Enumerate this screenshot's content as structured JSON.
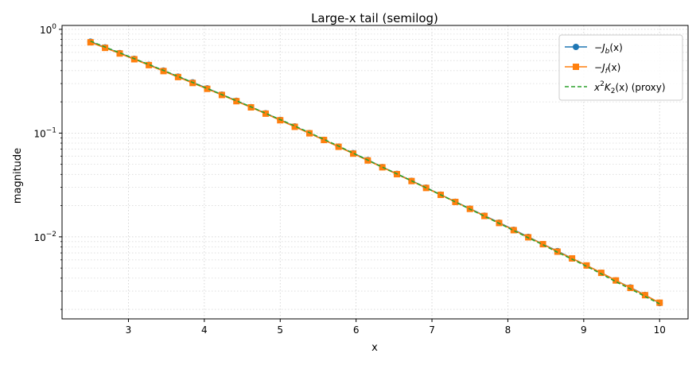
{
  "chart_data": {
    "type": "line",
    "title": "Large-x tail (semilog)",
    "xlabel": "x",
    "ylabel": "magnitude",
    "xlim": [
      2.125,
      10.375
    ],
    "ylim": [
      0.00162,
      1.09
    ],
    "yscale": "log",
    "grid": true,
    "legend_position": "top-right",
    "x_ticks": [
      3,
      4,
      5,
      6,
      7,
      8,
      9,
      10
    ],
    "x_tick_labels": [
      "3",
      "4",
      "5",
      "6",
      "7",
      "8",
      "9",
      "10"
    ],
    "y_ticks": [
      1,
      0.1,
      0.01
    ],
    "y_tick_labels": [
      {
        "base": "10",
        "exp": "0"
      },
      {
        "base": "10",
        "exp": "−1"
      },
      {
        "base": "10",
        "exp": "−2"
      }
    ],
    "x": [
      2.5,
      2.692,
      2.885,
      3.077,
      3.269,
      3.462,
      3.654,
      3.846,
      4.038,
      4.231,
      4.423,
      4.615,
      4.808,
      5.0,
      5.192,
      5.385,
      5.577,
      5.769,
      5.962,
      6.154,
      6.346,
      6.538,
      6.731,
      6.923,
      7.115,
      7.308,
      7.5,
      7.692,
      7.885,
      8.077,
      8.269,
      8.462,
      8.654,
      8.846,
      9.038,
      9.231,
      9.423,
      9.615,
      9.808,
      10.0
    ],
    "series": [
      {
        "name_parts": [
          "−",
          "J",
          "b",
          "(x)"
        ],
        "color": "#1f77b4",
        "marker": "circle",
        "line": "solid",
        "values": [
          0.76,
          0.67,
          0.59,
          0.52,
          0.455,
          0.4,
          0.35,
          0.308,
          0.27,
          0.235,
          0.205,
          0.178,
          0.155,
          0.134,
          0.116,
          0.1,
          0.086,
          0.074,
          0.064,
          0.055,
          0.047,
          0.0405,
          0.0347,
          0.0298,
          0.0255,
          0.0218,
          0.0187,
          0.016,
          0.0137,
          0.0117,
          0.01,
          0.0085,
          0.0073,
          0.0062,
          0.0053,
          0.0045,
          0.0038,
          0.00325,
          0.00275,
          0.0023
        ]
      },
      {
        "name_parts": [
          "−",
          "J",
          "f",
          "(x)"
        ],
        "color": "#ff7f0e",
        "marker": "square",
        "line": "solid",
        "values": [
          0.75,
          0.663,
          0.585,
          0.515,
          0.452,
          0.396,
          0.347,
          0.304,
          0.267,
          0.233,
          0.203,
          0.177,
          0.154,
          0.133,
          0.115,
          0.0995,
          0.0858,
          0.0738,
          0.0634,
          0.0545,
          0.0468,
          0.0402,
          0.0345,
          0.0296,
          0.0254,
          0.0217,
          0.0186,
          0.0159,
          0.0136,
          0.0116,
          0.0099,
          0.0085,
          0.0072,
          0.0062,
          0.0053,
          0.0045,
          0.0038,
          0.00322,
          0.00274,
          0.00232
        ]
      },
      {
        "name_parts": [
          "x",
          "2",
          "K",
          "2",
          "(x) (proxy)"
        ],
        "color": "#2ca02c",
        "marker": "none",
        "line": "dashed",
        "values": [
          0.77,
          0.675,
          0.594,
          0.522,
          0.458,
          0.402,
          0.351,
          0.308,
          0.269,
          0.235,
          0.205,
          0.179,
          0.155,
          0.135,
          0.117,
          0.101,
          0.087,
          0.075,
          0.064,
          0.055,
          0.047,
          0.0405,
          0.0347,
          0.0297,
          0.0254,
          0.0217,
          0.0185,
          0.0158,
          0.0135,
          0.0115,
          0.0098,
          0.0084,
          0.0071,
          0.0061,
          0.0052,
          0.0044,
          0.0037,
          0.00315,
          0.00267,
          0.00226
        ]
      }
    ]
  }
}
